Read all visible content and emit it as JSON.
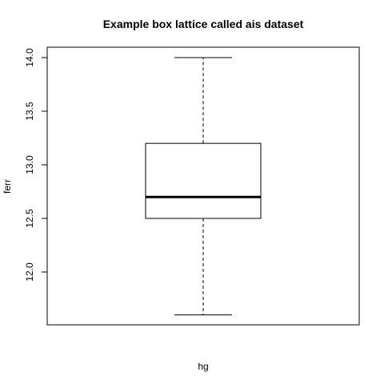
{
  "chart_data": {
    "type": "box",
    "title": "Example box lattice called ais dataset",
    "xlabel": "hg",
    "ylabel": "ferr",
    "ylim": [
      11.5,
      14.05
    ],
    "yticks": [
      "12.0",
      "12.5",
      "13.0",
      "13.5",
      "14.0"
    ],
    "box": {
      "whisker_low": 11.6,
      "q1": 12.5,
      "median": 12.7,
      "q3": 13.2,
      "whisker_high": 14.0
    }
  }
}
